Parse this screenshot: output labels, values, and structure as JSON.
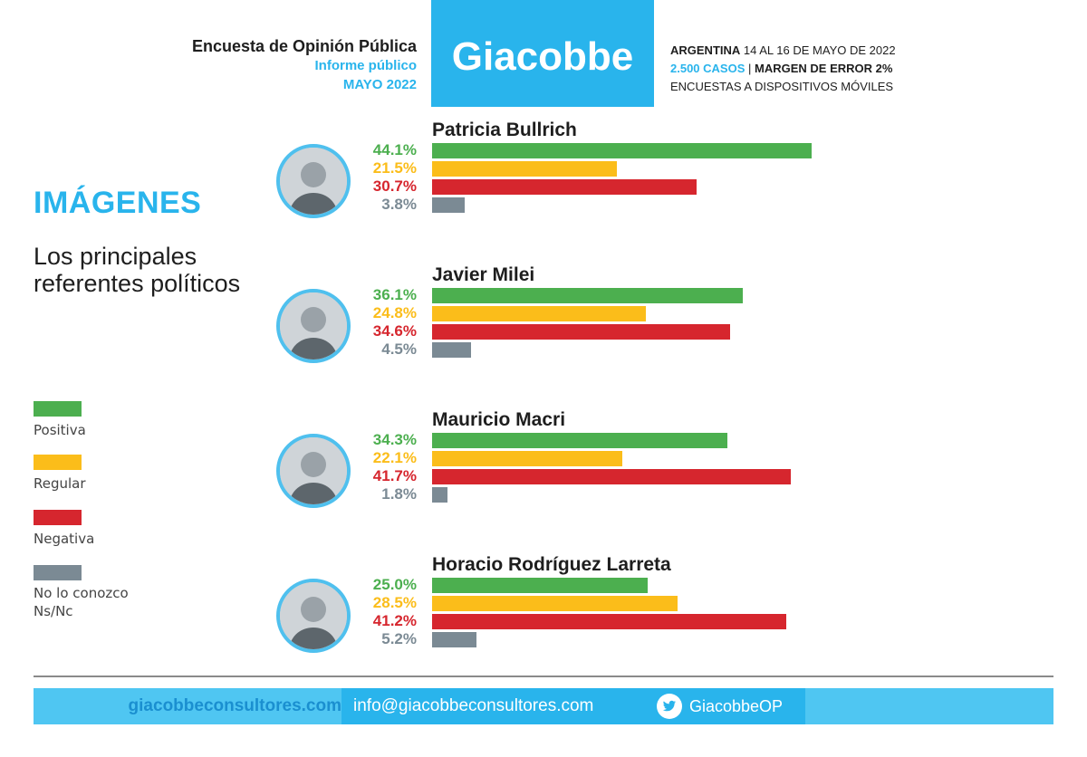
{
  "header": {
    "left_line1": "Encuesta de Opinión Pública",
    "left_line2": "Informe público",
    "left_line3": "MAYO 2022",
    "brand": "Giacobbe",
    "right_country": "ARGENTINA",
    "right_dates": "14 AL 16 DE MAYO DE 2022",
    "right_cases": "2.500 CASOS",
    "right_sep": "|",
    "right_margin": "MARGEN DE ERROR 2%",
    "right_method": "ENCUESTAS A DISPOSITIVOS MÓVILES"
  },
  "section": {
    "title": "IMÁGENES",
    "subtitle": "Los principales referentes políticos"
  },
  "colors": {
    "Positiva": "#4caf4f",
    "Regular": "#fbbd1a",
    "Negativa": "#d6262e",
    "No lo conozco Ns/Nc": "#7b8a94",
    "accent": "#29b4ec"
  },
  "chart_data": {
    "type": "bar",
    "orientation": "horizontal",
    "categories": [
      "Positiva",
      "Regular",
      "Negativa",
      "No lo conozco Ns/Nc"
    ],
    "legend": [
      "Positiva",
      "Regular",
      "Negativa",
      "No lo conozco Ns/Nc"
    ],
    "legend_position": "left",
    "xlim": [
      0,
      50
    ],
    "grid": false,
    "candidates": [
      {
        "name": "Patricia Bullrich",
        "values": [
          44.1,
          21.5,
          30.7,
          3.8
        ],
        "labels": [
          "44.1%",
          "21.5%",
          "30.7%",
          "3.8%"
        ]
      },
      {
        "name": "Javier Milei",
        "values": [
          36.1,
          24.8,
          34.6,
          4.5
        ],
        "labels": [
          "36.1%",
          "24.8%",
          "34.6%",
          "4.5%"
        ]
      },
      {
        "name": "Mauricio Macri",
        "values": [
          34.3,
          22.1,
          41.7,
          1.8
        ],
        "labels": [
          "34.3%",
          "22.1%",
          "41.7%",
          "1.8%"
        ]
      },
      {
        "name": "Horacio Rodríguez Larreta",
        "values": [
          25.0,
          28.5,
          41.2,
          5.2
        ],
        "labels": [
          "25.0%",
          "28.5%",
          "41.2%",
          "5.2%"
        ]
      }
    ]
  },
  "legend_items": [
    "Positiva",
    "Regular",
    "Negativa",
    "No lo conozco",
    "Ns/Nc"
  ],
  "footer": {
    "site": "giacobbeconsultores.com",
    "email": "info@giacobbeconsultores.com",
    "twitter": "GiacobbeOP"
  }
}
